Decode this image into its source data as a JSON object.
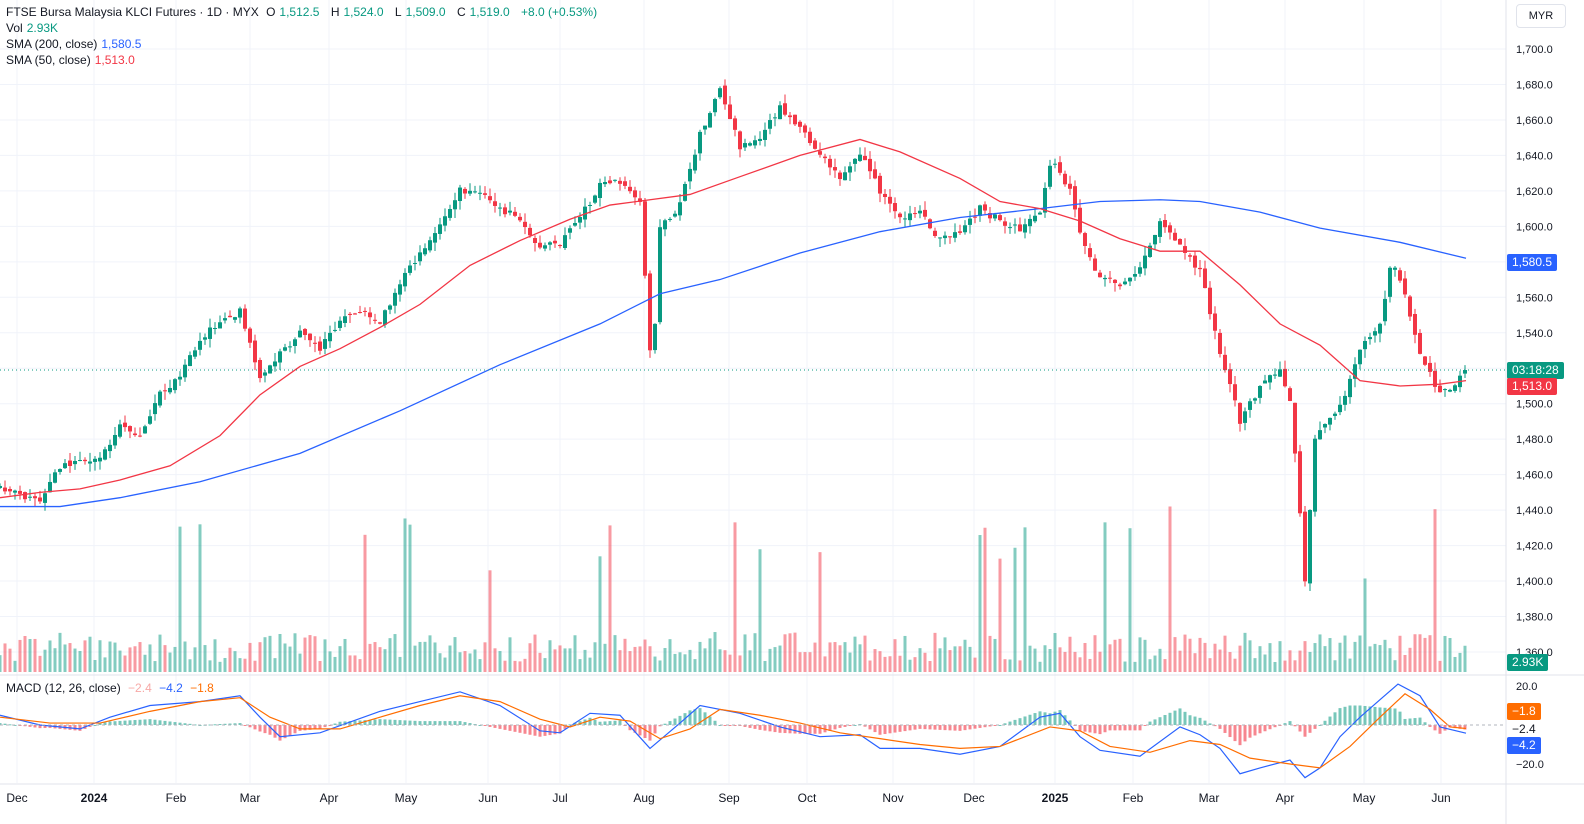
{
  "header": {
    "symbol": "FTSE Bursa Malaysia KLCI Futures · 1D · MYX",
    "o_label": "O",
    "o": "1,512.5",
    "h_label": "H",
    "h": "1,524.0",
    "l_label": "L",
    "l": "1,509.0",
    "c_label": "C",
    "c": "1,519.0",
    "change": "+8.0 (+0.53%)"
  },
  "indicators": {
    "vol_label": "Vol",
    "vol_value": "2.93K",
    "sma200_label": "SMA (200, close)",
    "sma200_value": "1,580.5",
    "sma50_label": "SMA (50, close)",
    "sma50_value": "1,513.0",
    "macd_label": "MACD (12, 26, close)",
    "macd_hist": "−2.4",
    "macd_line": "−4.2",
    "macd_signal": "−1.8"
  },
  "currency": "MYR",
  "badges": {
    "sma200": "1,580.5",
    "countdown": "03:18:28",
    "sma50": "1,513.0",
    "volume": "2.93K",
    "macd_signal": "−1.8",
    "macd_hist": "−2.4",
    "macd_line": "−4.2"
  },
  "colors": {
    "up": "#089981",
    "down": "#f23645",
    "sma200": "#2962ff",
    "sma50": "#f23645",
    "macd": "#2962ff",
    "signal": "#ff6d00"
  },
  "chart_data": {
    "type": "candlestick",
    "title": "FTSE Bursa Malaysia KLCI Futures · 1D · MYX",
    "price_axis": {
      "ticks": [
        "1,700.0",
        "1,680.0",
        "1,660.0",
        "1,640.0",
        "1,620.0",
        "1,600.0",
        "1,580.0",
        "1,560.0",
        "1,540.0",
        "1,520.0",
        "1,500.0",
        "1,480.0",
        "1,460.0",
        "1,440.0",
        "1,420.0",
        "1,400.0",
        "1,380.0",
        "1,360.0"
      ],
      "range": [
        1355,
        1710
      ]
    },
    "macd_axis": {
      "ticks": [
        "20.0",
        "−20.0"
      ],
      "range": [
        -28,
        24
      ]
    },
    "time_axis": {
      "labels": [
        "Dec",
        "2024",
        "Feb",
        "Mar",
        "Apr",
        "May",
        "Jun",
        "Jul",
        "Aug",
        "Sep",
        "Oct",
        "Nov",
        "Dec",
        "2025",
        "Feb",
        "Mar",
        "Apr",
        "May",
        "Jun"
      ]
    },
    "last_close": 1519.0,
    "series": [
      {
        "name": "SMA (200, close)",
        "points": [
          [
            0,
            1442
          ],
          [
            60,
            1442
          ],
          [
            120,
            1447
          ],
          [
            200,
            1456
          ],
          [
            300,
            1472
          ],
          [
            400,
            1496
          ],
          [
            500,
            1522
          ],
          [
            600,
            1545
          ],
          [
            660,
            1562
          ],
          [
            720,
            1570
          ],
          [
            800,
            1585
          ],
          [
            880,
            1597
          ],
          [
            960,
            1605
          ],
          [
            1040,
            1610
          ],
          [
            1100,
            1614
          ],
          [
            1160,
            1615
          ],
          [
            1200,
            1614
          ],
          [
            1260,
            1608
          ],
          [
            1320,
            1599
          ],
          [
            1400,
            1591
          ],
          [
            1466,
            1582
          ]
        ]
      },
      {
        "name": "SMA (50, close)",
        "points": [
          [
            0,
            1447
          ],
          [
            40,
            1450
          ],
          [
            80,
            1452
          ],
          [
            120,
            1457
          ],
          [
            170,
            1465
          ],
          [
            220,
            1482
          ],
          [
            260,
            1505
          ],
          [
            300,
            1521
          ],
          [
            340,
            1531
          ],
          [
            380,
            1543
          ],
          [
            420,
            1556
          ],
          [
            470,
            1578
          ],
          [
            520,
            1592
          ],
          [
            570,
            1604
          ],
          [
            610,
            1612
          ],
          [
            650,
            1615
          ],
          [
            690,
            1618
          ],
          [
            740,
            1628
          ],
          [
            800,
            1640
          ],
          [
            860,
            1649
          ],
          [
            900,
            1642
          ],
          [
            960,
            1627
          ],
          [
            1000,
            1614
          ],
          [
            1040,
            1610
          ],
          [
            1080,
            1603
          ],
          [
            1120,
            1593
          ],
          [
            1160,
            1586
          ],
          [
            1200,
            1586
          ],
          [
            1240,
            1567
          ],
          [
            1280,
            1545
          ],
          [
            1320,
            1533
          ],
          [
            1360,
            1513
          ],
          [
            1400,
            1510
          ],
          [
            1440,
            1511
          ],
          [
            1466,
            1513
          ]
        ]
      }
    ],
    "candles_path": [
      [
        0,
        1452
      ],
      [
        20,
        1449
      ],
      [
        40,
        1445
      ],
      [
        60,
        1465
      ],
      [
        80,
        1468
      ],
      [
        100,
        1470
      ],
      [
        120,
        1487
      ],
      [
        140,
        1483
      ],
      [
        160,
        1505
      ],
      [
        180,
        1516
      ],
      [
        200,
        1535
      ],
      [
        220,
        1547
      ],
      [
        240,
        1552
      ],
      [
        260,
        1515
      ],
      [
        280,
        1528
      ],
      [
        300,
        1540
      ],
      [
        320,
        1530
      ],
      [
        340,
        1548
      ],
      [
        360,
        1552
      ],
      [
        380,
        1545
      ],
      [
        400,
        1568
      ],
      [
        420,
        1585
      ],
      [
        440,
        1600
      ],
      [
        460,
        1621
      ],
      [
        480,
        1618
      ],
      [
        500,
        1610
      ],
      [
        520,
        1605
      ],
      [
        540,
        1588
      ],
      [
        560,
        1590
      ],
      [
        580,
        1605
      ],
      [
        600,
        1623
      ],
      [
        620,
        1625
      ],
      [
        640,
        1612
      ],
      [
        652,
        1515
      ],
      [
        660,
        1600
      ],
      [
        680,
        1612
      ],
      [
        700,
        1652
      ],
      [
        720,
        1678
      ],
      [
        740,
        1645
      ],
      [
        760,
        1650
      ],
      [
        780,
        1667
      ],
      [
        800,
        1657
      ],
      [
        820,
        1640
      ],
      [
        840,
        1628
      ],
      [
        860,
        1642
      ],
      [
        880,
        1620
      ],
      [
        900,
        1605
      ],
      [
        920,
        1608
      ],
      [
        940,
        1592
      ],
      [
        960,
        1596
      ],
      [
        980,
        1610
      ],
      [
        1000,
        1603
      ],
      [
        1020,
        1598
      ],
      [
        1040,
        1608
      ],
      [
        1052,
        1640
      ],
      [
        1070,
        1620
      ],
      [
        1080,
        1596
      ],
      [
        1100,
        1570
      ],
      [
        1120,
        1568
      ],
      [
        1140,
        1575
      ],
      [
        1160,
        1602
      ],
      [
        1180,
        1588
      ],
      [
        1200,
        1575
      ],
      [
        1215,
        1540
      ],
      [
        1230,
        1510
      ],
      [
        1240,
        1490
      ],
      [
        1260,
        1510
      ],
      [
        1280,
        1520
      ],
      [
        1290,
        1500
      ],
      [
        1300,
        1440
      ],
      [
        1305,
        1400
      ],
      [
        1315,
        1480
      ],
      [
        1330,
        1490
      ],
      [
        1345,
        1505
      ],
      [
        1360,
        1530
      ],
      [
        1380,
        1545
      ],
      [
        1392,
        1582
      ],
      [
        1405,
        1560
      ],
      [
        1420,
        1530
      ],
      [
        1440,
        1505
      ],
      [
        1455,
        1510
      ],
      [
        1466,
        1519
      ]
    ],
    "macd_line_path": [
      [
        0,
        5
      ],
      [
        40,
        0
      ],
      [
        80,
        -2
      ],
      [
        110,
        4
      ],
      [
        150,
        10
      ],
      [
        200,
        12
      ],
      [
        240,
        15
      ],
      [
        260,
        4
      ],
      [
        280,
        -6
      ],
      [
        320,
        -4
      ],
      [
        380,
        7
      ],
      [
        420,
        12
      ],
      [
        460,
        17
      ],
      [
        500,
        10
      ],
      [
        540,
        -3
      ],
      [
        560,
        -4
      ],
      [
        590,
        6
      ],
      [
        620,
        5
      ],
      [
        650,
        -12
      ],
      [
        680,
        1
      ],
      [
        700,
        10
      ],
      [
        740,
        6
      ],
      [
        780,
        -1
      ],
      [
        820,
        -6
      ],
      [
        860,
        -5
      ],
      [
        880,
        -12
      ],
      [
        920,
        -12
      ],
      [
        960,
        -15
      ],
      [
        1000,
        -11
      ],
      [
        1040,
        4
      ],
      [
        1060,
        6
      ],
      [
        1080,
        -6
      ],
      [
        1100,
        -13
      ],
      [
        1140,
        -16
      ],
      [
        1180,
        -1
      ],
      [
        1200,
        -5
      ],
      [
        1220,
        -12
      ],
      [
        1240,
        -25
      ],
      [
        1260,
        -22
      ],
      [
        1290,
        -18
      ],
      [
        1305,
        -27
      ],
      [
        1320,
        -22
      ],
      [
        1340,
        -6
      ],
      [
        1360,
        4
      ],
      [
        1380,
        13
      ],
      [
        1398,
        21
      ],
      [
        1420,
        15
      ],
      [
        1440,
        -1
      ],
      [
        1466,
        -4.2
      ]
    ],
    "signal_line_path": [
      [
        0,
        4
      ],
      [
        50,
        1
      ],
      [
        100,
        1
      ],
      [
        150,
        7
      ],
      [
        200,
        12
      ],
      [
        240,
        14
      ],
      [
        270,
        4
      ],
      [
        300,
        -2
      ],
      [
        340,
        -2
      ],
      [
        380,
        4
      ],
      [
        420,
        10
      ],
      [
        460,
        15
      ],
      [
        500,
        12
      ],
      [
        540,
        3
      ],
      [
        570,
        -1
      ],
      [
        600,
        4
      ],
      [
        630,
        2
      ],
      [
        660,
        -7
      ],
      [
        690,
        -2
      ],
      [
        720,
        8
      ],
      [
        760,
        5
      ],
      [
        800,
        1
      ],
      [
        840,
        -4
      ],
      [
        880,
        -7
      ],
      [
        920,
        -10
      ],
      [
        960,
        -12
      ],
      [
        1000,
        -11
      ],
      [
        1050,
        -1
      ],
      [
        1080,
        -3
      ],
      [
        1110,
        -11
      ],
      [
        1150,
        -14
      ],
      [
        1190,
        -8
      ],
      [
        1220,
        -10
      ],
      [
        1250,
        -17
      ],
      [
        1290,
        -20
      ],
      [
        1320,
        -22
      ],
      [
        1350,
        -11
      ],
      [
        1380,
        4
      ],
      [
        1405,
        16
      ],
      [
        1430,
        8
      ],
      [
        1450,
        -1
      ],
      [
        1466,
        -1.8
      ]
    ]
  }
}
